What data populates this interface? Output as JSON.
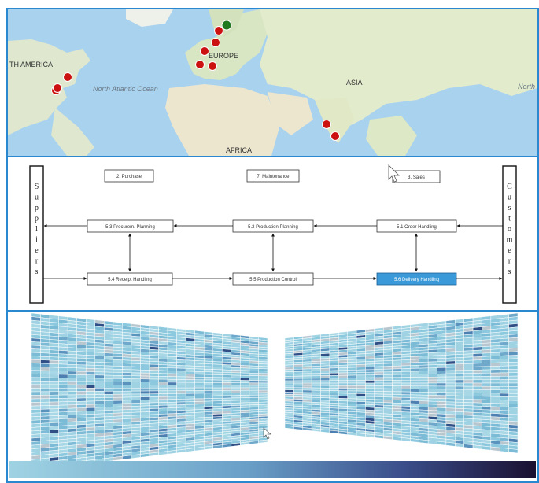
{
  "map": {
    "labels": {
      "north_america": "TH AMERICA",
      "europe": "EUROPE",
      "asia": "ASIA",
      "africa": "AFRICA",
      "north_atlantic": "North Atlantic Ocean",
      "north_partial": "North I"
    },
    "marker_colors": {
      "default": "#cc1111",
      "highlight": "#1f7a1f"
    }
  },
  "flow": {
    "left_side": "Suppliers",
    "right_side": "Customers",
    "top_boxes": {
      "purchase": "2. Purchase",
      "maintenance": "7. Maintenance",
      "sales": "3. Sales"
    },
    "mid_boxes": {
      "procurement": "5.3 Procurem. Planning",
      "production_planning": "5.2 Production Planning",
      "order_handling": "5.1 Order Handling"
    },
    "bottom_boxes": {
      "receipt": "5.4 Receipt Handling",
      "production_control": "5.5 Production Control",
      "delivery": "5.6 Delivery Handling"
    },
    "highlight_color": "#3a9ad9"
  },
  "heatmap": {
    "colorbar": {
      "start": "#9fd3e3",
      "end": "#1a1030"
    }
  }
}
